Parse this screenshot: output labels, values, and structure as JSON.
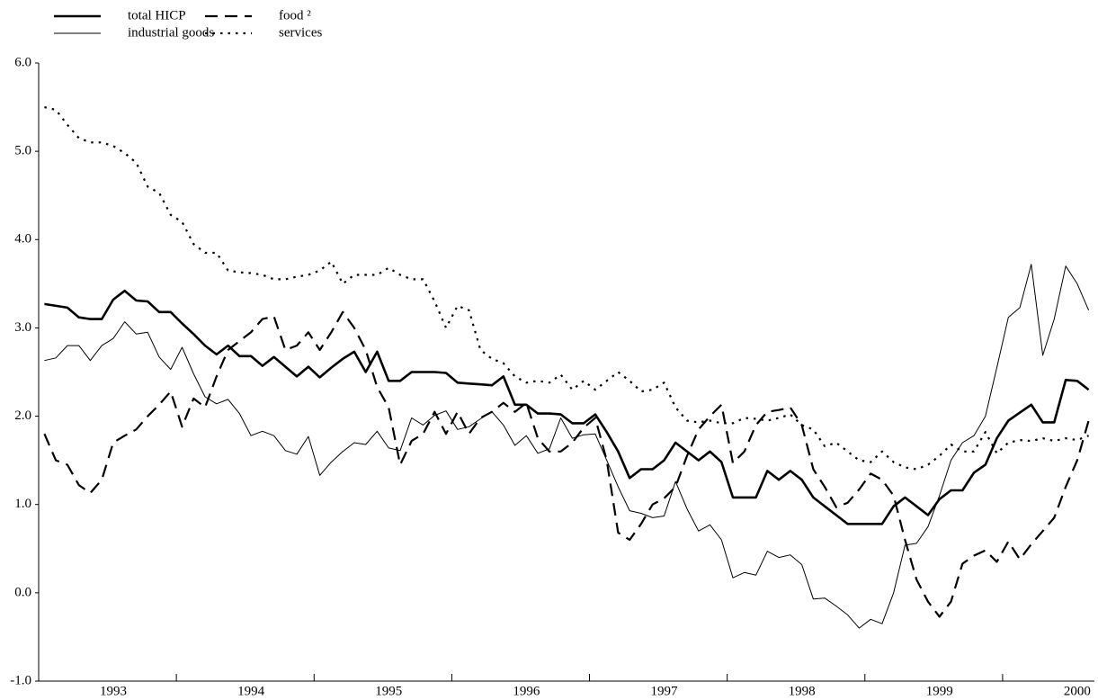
{
  "chart_data": {
    "type": "line",
    "categories": [
      null,
      null,
      null,
      null,
      null,
      null,
      "1993",
      null,
      null,
      null,
      null,
      null,
      null,
      null,
      null,
      null,
      null,
      null,
      "1994",
      null,
      null,
      null,
      null,
      null,
      null,
      null,
      null,
      null,
      null,
      null,
      "1995",
      null,
      null,
      null,
      null,
      null,
      null,
      null,
      null,
      null,
      null,
      null,
      "1996",
      null,
      null,
      null,
      null,
      null,
      null,
      null,
      null,
      null,
      null,
      null,
      "1997",
      null,
      null,
      null,
      null,
      null,
      null,
      null,
      null,
      null,
      null,
      null,
      "1998",
      null,
      null,
      null,
      null,
      null,
      null,
      null,
      null,
      null,
      null,
      null,
      "1999",
      null,
      null,
      null,
      null,
      null,
      null,
      null,
      null,
      null,
      null,
      null,
      "2000",
      null
    ],
    "series": [
      {
        "name": "total HICP",
        "color": "#000000",
        "style": "solid",
        "width": 2.6,
        "values": [
          3.27,
          3.25,
          3.23,
          3.12,
          3.1,
          3.1,
          3.32,
          3.42,
          3.31,
          3.3,
          3.18,
          3.18,
          3.05,
          2.93,
          2.8,
          2.7,
          2.8,
          2.68,
          2.68,
          2.57,
          2.67,
          2.56,
          2.45,
          2.56,
          2.44,
          2.55,
          2.65,
          2.73,
          2.5,
          2.73,
          2.4,
          2.4,
          2.5,
          2.5,
          2.5,
          2.49,
          2.38,
          2.37,
          2.36,
          2.35,
          2.45,
          2.13,
          2.13,
          2.03,
          2.03,
          2.02,
          1.92,
          1.92,
          2.02,
          1.82,
          1.6,
          1.3,
          1.4,
          1.4,
          1.5,
          1.7,
          1.6,
          1.5,
          1.6,
          1.48,
          1.08,
          1.08,
          1.08,
          1.38,
          1.28,
          1.38,
          1.28,
          1.08,
          0.98,
          0.88,
          0.78,
          0.78,
          0.78,
          0.78,
          0.98,
          1.08,
          0.98,
          0.88,
          1.06,
          1.16,
          1.16,
          1.36,
          1.45,
          1.75,
          1.95,
          2.04,
          2.13,
          1.93,
          1.93,
          2.41,
          2.4,
          2.3
        ]
      },
      {
        "name": "food ²",
        "color": "#000000",
        "style": "dashed",
        "width": 2.2,
        "values": [
          1.8,
          1.5,
          1.45,
          1.22,
          1.13,
          1.28,
          1.7,
          1.78,
          1.85,
          2.0,
          2.13,
          2.28,
          1.88,
          2.2,
          2.1,
          2.45,
          2.75,
          2.85,
          2.95,
          3.1,
          3.13,
          2.75,
          2.8,
          2.95,
          2.75,
          2.95,
          3.18,
          3.0,
          2.75,
          2.33,
          2.1,
          1.45,
          1.72,
          1.8,
          2.05,
          1.8,
          2.05,
          1.8,
          1.98,
          2.05,
          2.15,
          2.05,
          2.15,
          1.75,
          1.6,
          1.6,
          1.7,
          1.87,
          1.98,
          1.5,
          0.68,
          0.6,
          0.78,
          1.0,
          1.07,
          1.2,
          1.55,
          1.85,
          2.0,
          2.13,
          1.47,
          1.6,
          1.9,
          2.05,
          2.07,
          2.1,
          1.9,
          1.4,
          1.2,
          0.97,
          1.02,
          1.17,
          1.35,
          1.28,
          1.1,
          0.6,
          0.15,
          -0.1,
          -0.27,
          -0.1,
          0.33,
          0.42,
          0.48,
          0.35,
          0.58,
          0.38,
          0.55,
          0.7,
          0.85,
          1.2,
          1.5,
          1.95
        ]
      },
      {
        "name": "industrial goods",
        "color": "#000000",
        "style": "solid",
        "width": 1,
        "values": [
          2.63,
          2.66,
          2.8,
          2.8,
          2.63,
          2.8,
          2.88,
          3.07,
          2.93,
          2.95,
          2.67,
          2.53,
          2.78,
          2.48,
          2.22,
          2.14,
          2.19,
          2.03,
          1.78,
          1.83,
          1.78,
          1.61,
          1.57,
          1.77,
          1.33,
          1.48,
          1.6,
          1.7,
          1.68,
          1.83,
          1.64,
          1.61,
          1.98,
          1.9,
          2.01,
          2.06,
          1.85,
          1.88,
          1.97,
          2.05,
          1.9,
          1.67,
          1.78,
          1.58,
          1.63,
          1.98,
          1.75,
          1.79,
          1.8,
          1.5,
          1.2,
          0.93,
          0.9,
          0.85,
          0.87,
          1.26,
          0.95,
          0.7,
          0.77,
          0.6,
          0.17,
          0.23,
          0.2,
          0.47,
          0.4,
          0.43,
          0.32,
          -0.07,
          -0.06,
          -0.15,
          -0.25,
          -0.4,
          -0.3,
          -0.35,
          0,
          0.54,
          0.56,
          0.75,
          1.1,
          1.5,
          1.7,
          1.78,
          2.0,
          2.55,
          3.12,
          3.23,
          3.72,
          2.69,
          3.1,
          3.7,
          3.5,
          3.2
        ]
      },
      {
        "name": "services",
        "color": "#000000",
        "style": "dotted",
        "width": 2.2,
        "values": [
          5.5,
          5.47,
          5.3,
          5.15,
          5.1,
          5.1,
          5.06,
          4.98,
          4.87,
          4.6,
          4.53,
          4.28,
          4.2,
          3.95,
          3.85,
          3.85,
          3.65,
          3.63,
          3.62,
          3.6,
          3.55,
          3.55,
          3.58,
          3.6,
          3.65,
          3.75,
          3.5,
          3.6,
          3.6,
          3.6,
          3.68,
          3.6,
          3.55,
          3.55,
          3.3,
          3.0,
          3.25,
          3.2,
          2.75,
          2.65,
          2.6,
          2.45,
          2.38,
          2.4,
          2.38,
          2.47,
          2.3,
          2.4,
          2.3,
          2.4,
          2.5,
          2.4,
          2.28,
          2.3,
          2.38,
          2.1,
          1.95,
          1.93,
          1.95,
          1.92,
          1.92,
          1.98,
          1.97,
          1.95,
          1.98,
          2.02,
          1.9,
          1.85,
          1.66,
          1.7,
          1.6,
          1.5,
          1.48,
          1.6,
          1.48,
          1.42,
          1.4,
          1.45,
          1.55,
          1.68,
          1.6,
          1.6,
          1.82,
          1.58,
          1.7,
          1.73,
          1.72,
          1.75,
          1.72,
          1.75,
          1.73,
          1.78
        ]
      }
    ],
    "ylim": [
      -1,
      6
    ],
    "yticks": [
      {
        "value": -1,
        "label": "-1.0"
      },
      {
        "value": 0,
        "label": "0.0"
      },
      {
        "value": 1,
        "label": "1.0"
      },
      {
        "value": 2,
        "label": "2.0"
      },
      {
        "value": 3,
        "label": "3.0"
      },
      {
        "value": 4,
        "label": "4.0"
      },
      {
        "value": 5,
        "label": "5.0"
      },
      {
        "value": 6,
        "label": "6.0"
      }
    ],
    "grid": false,
    "legend": "upper left"
  }
}
